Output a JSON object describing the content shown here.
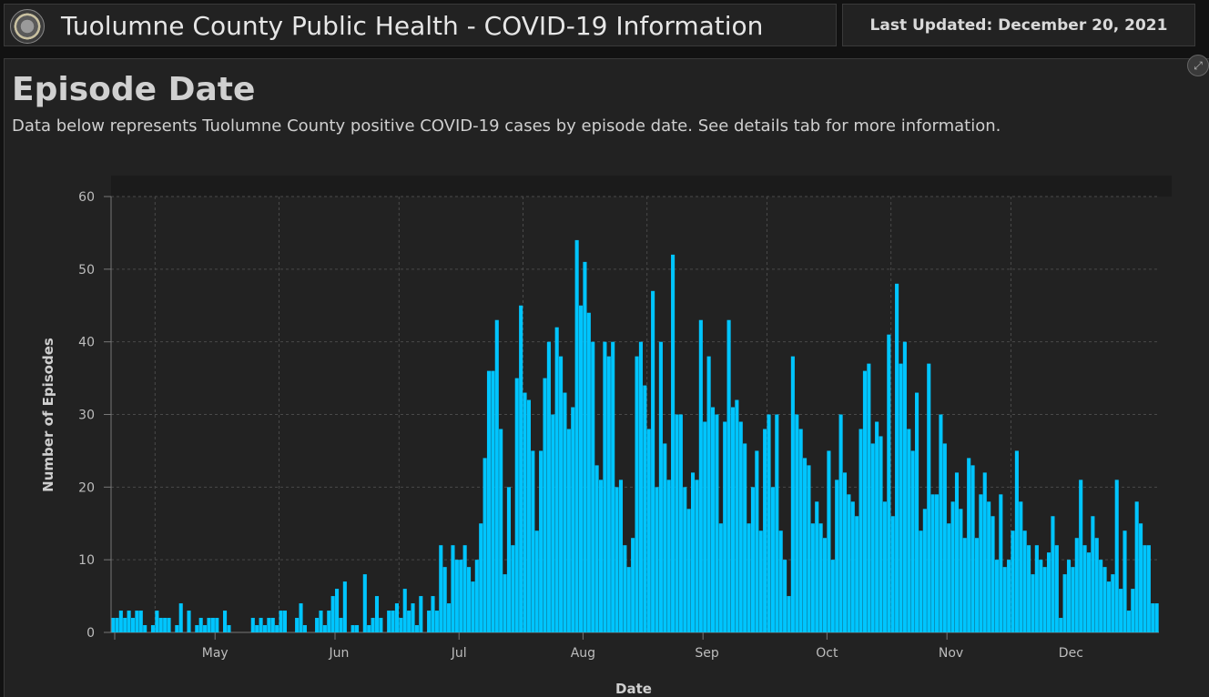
{
  "header": {
    "title": "Tuolumne County Public Health - COVID-19 Information",
    "last_updated": "Last Updated: December 20, 2021",
    "seal_icon": "county-seal-icon"
  },
  "panel": {
    "title": "Episode Date",
    "description": "Data below represents Tuolumne County positive COVID-19 cases by episode date. See details tab for more information.",
    "expand_icon": "expand-icon"
  },
  "colors": {
    "bar": "#00c5ff",
    "background": "#222222",
    "grid": "#4a4a4a"
  },
  "chart_data": {
    "type": "bar",
    "xlabel": "Date",
    "ylabel": "Number of Episodes",
    "ylim": [
      0,
      60
    ],
    "yticks": [
      0,
      10,
      20,
      30,
      40,
      50,
      60
    ],
    "x_start": "2021-04-20",
    "month_labels": [
      {
        "label": "May",
        "date": "2021-05-01"
      },
      {
        "label": "Jun",
        "date": "2021-06-01"
      },
      {
        "label": "Jul",
        "date": "2021-07-01"
      },
      {
        "label": "Aug",
        "date": "2021-08-01"
      },
      {
        "label": "Sep",
        "date": "2021-09-01"
      },
      {
        "label": "Oct",
        "date": "2021-10-01"
      },
      {
        "label": "Nov",
        "date": "2021-11-01"
      },
      {
        "label": "Dec",
        "date": "2021-12-01"
      }
    ],
    "grid": true,
    "values": [
      2,
      2,
      3,
      2,
      3,
      2,
      3,
      3,
      1,
      0,
      1,
      3,
      2,
      2,
      2,
      0,
      1,
      4,
      0,
      3,
      0,
      1,
      2,
      1,
      2,
      2,
      2,
      0,
      3,
      1,
      0,
      0,
      0,
      0,
      0,
      2,
      1,
      2,
      1,
      2,
      2,
      1,
      3,
      3,
      0,
      0,
      2,
      4,
      1,
      0,
      0,
      2,
      3,
      1,
      3,
      5,
      6,
      2,
      7,
      0,
      1,
      1,
      0,
      8,
      1,
      2,
      5,
      2,
      0,
      3,
      3,
      4,
      2,
      6,
      3,
      4,
      1,
      5,
      0,
      3,
      5,
      3,
      12,
      9,
      4,
      12,
      10,
      10,
      12,
      9,
      7,
      10,
      15,
      24,
      36,
      36,
      43,
      28,
      8,
      20,
      12,
      35,
      45,
      33,
      32,
      25,
      14,
      25,
      35,
      40,
      30,
      42,
      38,
      33,
      28,
      31,
      54,
      45,
      51,
      44,
      40,
      23,
      21,
      40,
      38,
      40,
      20,
      21,
      12,
      9,
      13,
      38,
      40,
      34,
      28,
      47,
      20,
      40,
      26,
      21,
      52,
      30,
      30,
      20,
      17,
      22,
      21,
      43,
      29,
      38,
      31,
      30,
      15,
      29,
      43,
      31,
      32,
      29,
      26,
      15,
      20,
      25,
      14,
      28,
      30,
      20,
      30,
      14,
      10,
      5,
      38,
      30,
      28,
      24,
      23,
      15,
      18,
      15,
      13,
      25,
      10,
      21,
      30,
      22,
      19,
      18,
      16,
      28,
      36,
      37,
      26,
      29,
      27,
      18,
      41,
      16,
      48,
      37,
      40,
      28,
      25,
      33,
      14,
      17,
      37,
      19,
      19,
      30,
      26,
      15,
      18,
      22,
      17,
      13,
      24,
      23,
      13,
      19,
      22,
      18,
      16,
      10,
      19,
      9,
      10,
      14,
      25,
      18,
      14,
      12,
      8,
      12,
      10,
      9,
      11,
      16,
      12,
      2,
      8,
      10,
      9,
      13,
      21,
      12,
      11,
      16,
      13,
      10,
      9,
      7,
      8,
      21,
      6,
      14,
      3,
      6,
      18,
      15,
      12,
      12,
      4,
      4
    ]
  }
}
